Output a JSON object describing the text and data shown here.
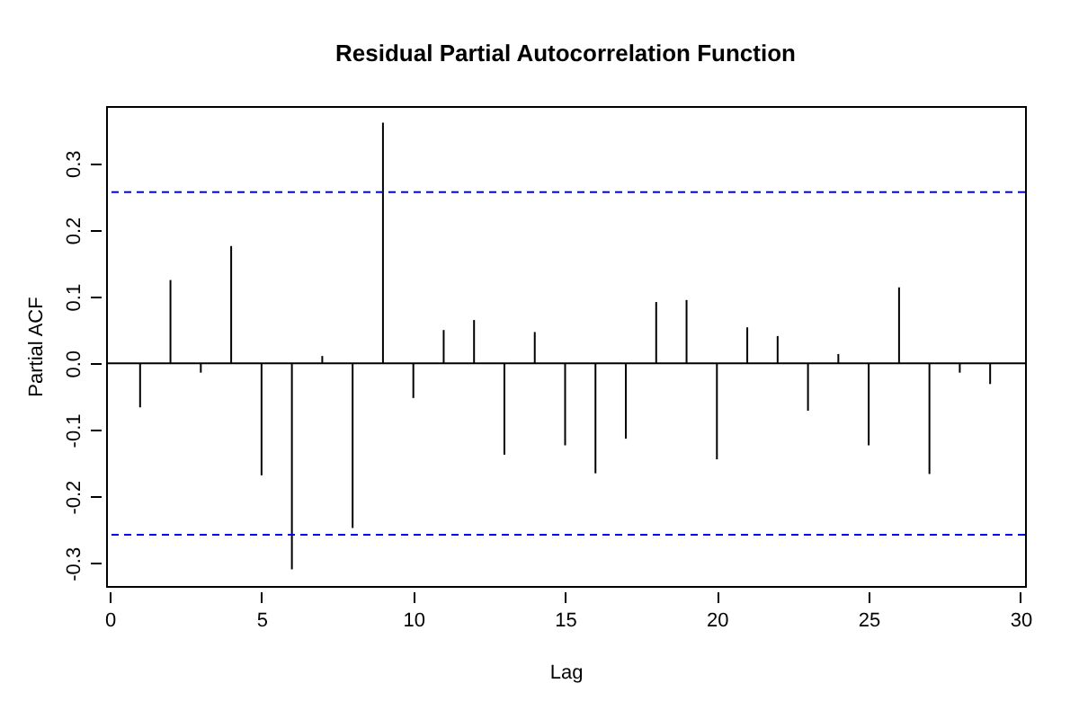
{
  "chart_data": {
    "type": "bar",
    "title": "Residual Partial Autocorrelation Function",
    "xlabel": "Lag",
    "ylabel": "Partial ACF",
    "x": [
      1,
      2,
      3,
      4,
      5,
      6,
      7,
      8,
      9,
      10,
      11,
      12,
      13,
      14,
      15,
      16,
      17,
      18,
      19,
      20,
      21,
      22,
      23,
      24,
      25,
      26,
      27,
      28,
      29
    ],
    "values": [
      -0.066,
      0.125,
      -0.014,
      0.176,
      -0.168,
      -0.309,
      0.011,
      -0.247,
      0.361,
      -0.052,
      0.05,
      0.065,
      -0.137,
      0.047,
      -0.123,
      -0.165,
      -0.113,
      0.092,
      0.095,
      -0.144,
      0.054,
      0.041,
      -0.071,
      0.014,
      -0.123,
      0.114,
      -0.166,
      -0.014,
      -0.031
    ],
    "color": "#000000",
    "xlim": [
      -0.12,
      30.15
    ],
    "xticks": [
      0,
      5,
      10,
      15,
      20,
      25,
      30
    ],
    "ylim": [
      -0.334,
      0.386
    ],
    "yticks": [
      -0.3,
      -0.2,
      -0.1,
      {
        "value": 0,
        "label": "0.0"
      },
      0.1,
      0.2,
      0.3
    ],
    "ref_lines": [
      {
        "axis": "y",
        "value": 0,
        "color": "#000000",
        "line_style": "solid"
      },
      {
        "axis": "y",
        "value": 0.257,
        "color": "#0000ff",
        "line_style": "dashed"
      },
      {
        "axis": "y",
        "value": -0.257,
        "color": "#0000ff",
        "line_style": "dashed"
      }
    ],
    "grid": false
  }
}
